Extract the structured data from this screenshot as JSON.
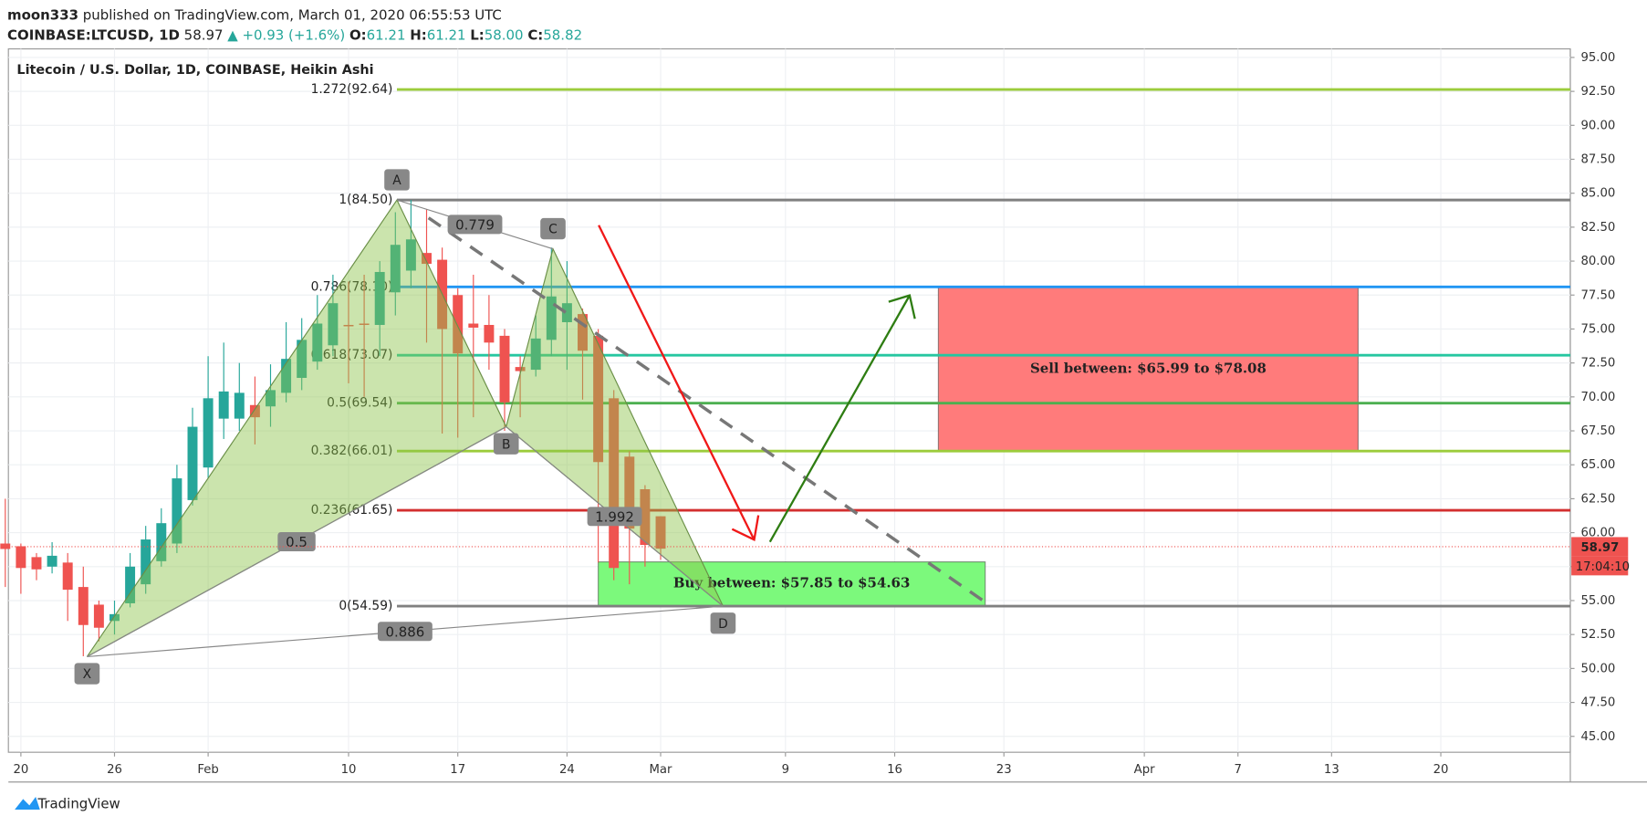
{
  "header": {
    "publisher": "moon333",
    "published": "published on TradingView.com, March 01, 2020 06:55:53 UTC",
    "symbol": "COINBASE:LTCUSD, 1D",
    "price": "58.97",
    "change": "▲ +0.93 (+1.6%)",
    "ohlc": [
      {
        "key": "O:",
        "value": "61.21"
      },
      {
        "key": "H:",
        "value": "61.21"
      },
      {
        "key": "L:",
        "value": "58.00"
      },
      {
        "key": "C:",
        "value": "58.82"
      }
    ],
    "brand": "TradingView"
  },
  "chart_data": {
    "type": "candlestick",
    "title": "Litecoin / U.S. Dollar, 1D, COINBASE, Heikin Ashi",
    "x": [
      -1,
      0,
      1,
      2,
      3,
      4,
      5,
      6,
      7,
      8,
      9,
      10,
      11,
      12,
      13,
      14,
      15,
      16,
      17,
      18,
      19,
      20,
      21,
      22,
      23,
      24,
      25,
      26,
      27,
      28,
      29,
      30,
      31,
      32,
      33,
      34,
      35,
      36,
      37,
      38,
      39,
      40,
      41
    ],
    "open": [
      59.2,
      59.0,
      58.2,
      57.5,
      57.8,
      56.0,
      54.7,
      53.5,
      54.8,
      56.2,
      57.9,
      59.2,
      62.4,
      64.8,
      68.4,
      68.4,
      69.4,
      69.3,
      70.3,
      71.4,
      72.6,
      73.8,
      75.3,
      75.4,
      75.3,
      77.7,
      79.3,
      80.6,
      80.1,
      77.5,
      75.4,
      75.3,
      74.5,
      72.2,
      72.0,
      74.2,
      75.5,
      76.1,
      74.5,
      69.9,
      65.6,
      63.2,
      61.21
    ],
    "high": [
      62.5,
      59.2,
      58.5,
      59.3,
      58.5,
      57.5,
      55.0,
      55.0,
      58.5,
      60.5,
      61.8,
      65.0,
      69.2,
      73.0,
      74.0,
      72.5,
      71.5,
      72.4,
      75.5,
      75.8,
      77.5,
      79.0,
      78.5,
      79.0,
      80.0,
      83.6,
      84.5,
      83.8,
      81.0,
      78.0,
      79.0,
      77.5,
      75.0,
      73.0,
      76.0,
      81.0,
      80.0,
      76.5,
      75.0,
      70.5,
      66.0,
      63.5,
      61.21
    ],
    "low": [
      56.0,
      55.5,
      56.5,
      57.0,
      53.5,
      50.9,
      52.0,
      52.5,
      54.5,
      55.5,
      57.5,
      58.5,
      62.0,
      64.0,
      66.9,
      67.5,
      66.5,
      67.8,
      69.6,
      70.5,
      72.0,
      73.0,
      71.0,
      70.0,
      73.0,
      76.0,
      78.0,
      74.0,
      67.3,
      67.0,
      68.5,
      72.0,
      67.5,
      68.5,
      71.5,
      73.0,
      72.0,
      69.8,
      57.8,
      56.5,
      56.2,
      57.5,
      58.0
    ],
    "close": [
      58.8,
      57.4,
      57.3,
      58.3,
      55.8,
      53.2,
      53.0,
      54.0,
      57.5,
      59.5,
      60.7,
      64.0,
      67.8,
      69.9,
      70.4,
      70.3,
      68.5,
      70.5,
      72.8,
      74.2,
      75.4,
      76.9,
      75.2,
      75.3,
      79.2,
      81.2,
      81.6,
      79.8,
      75.0,
      73.2,
      75.1,
      74.0,
      69.6,
      71.9,
      74.3,
      77.4,
      76.9,
      73.4,
      65.2,
      57.4,
      60.3,
      59.1,
      58.82
    ],
    "up_color": "#26a69a",
    "down_color": "#ef5350",
    "xlim": [
      -0.8,
      99.3
    ],
    "ylim": [
      43.83,
      95.63
    ],
    "xticks": [
      {
        "value": 0,
        "label": "20"
      },
      {
        "value": 6,
        "label": "26"
      },
      {
        "value": 12,
        "label": "Feb"
      },
      {
        "value": 21,
        "label": "10"
      },
      {
        "value": 28,
        "label": "17"
      },
      {
        "value": 35,
        "label": "24"
      },
      {
        "value": 41,
        "label": "Mar"
      },
      {
        "value": 49,
        "label": "9"
      },
      {
        "value": 56,
        "label": "16"
      },
      {
        "value": 63,
        "label": "23"
      },
      {
        "value": 72,
        "label": "Apr"
      },
      {
        "value": 78,
        "label": "7"
      },
      {
        "value": 84,
        "label": "13"
      },
      {
        "value": 91,
        "label": "20"
      }
    ],
    "yticks": [
      {
        "value": 45,
        "label": "45.00"
      },
      {
        "value": 47.5,
        "label": "47.50"
      },
      {
        "value": 50,
        "label": "50.00"
      },
      {
        "value": 52.5,
        "label": "52.50"
      },
      {
        "value": 55,
        "label": "55.00"
      },
      {
        "value": 57.5,
        "label": "57.50"
      },
      {
        "value": 60,
        "label": "60.00"
      },
      {
        "value": 62.5,
        "label": "62.50"
      },
      {
        "value": 65,
        "label": "65.00"
      },
      {
        "value": 67.5,
        "label": "67.50"
      },
      {
        "value": 70,
        "label": "70.00"
      },
      {
        "value": 72.5,
        "label": "72.50"
      },
      {
        "value": 75,
        "label": "75.00"
      },
      {
        "value": 77.5,
        "label": "77.50"
      },
      {
        "value": 80,
        "label": "80.00"
      },
      {
        "value": 82.5,
        "label": "82.50"
      },
      {
        "value": 85,
        "label": "85.00"
      },
      {
        "value": 87.5,
        "label": "87.50"
      },
      {
        "value": 90,
        "label": "90.00"
      },
      {
        "value": 92.5,
        "label": "92.50"
      },
      {
        "value": 95,
        "label": "95.00"
      }
    ],
    "grid": true,
    "levels": [
      {
        "label": "1.272(92.64)",
        "value": 92.64,
        "color": "#9ccc3c"
      },
      {
        "label": "1(84.50)",
        "value": 84.5,
        "color": "#808080"
      },
      {
        "label": "0.786(78.10)",
        "value": 78.1,
        "color": "#2196f3"
      },
      {
        "label": "0.618(73.07)",
        "value": 73.07,
        "color": "#26c6a0"
      },
      {
        "label": "0.5(69.54)",
        "value": 69.54,
        "color": "#4caf50"
      },
      {
        "label": "0.382(66.01)",
        "value": 66.01,
        "color": "#9ccc3c"
      },
      {
        "label": "0.236(61.65)",
        "value": 61.65,
        "color": "#d32f2f"
      },
      {
        "label": "0(54.59)",
        "value": 54.59,
        "color": "#808080"
      }
    ],
    "pattern": {
      "color": "#8bc34a",
      "points": [
        {
          "label": "X",
          "x": 4.24,
          "y": 50.87
        },
        {
          "label": "A",
          "x": 24.1,
          "y": 84.5
        },
        {
          "label": "B",
          "x": 31.1,
          "y": 67.8
        },
        {
          "label": "C",
          "x": 34.1,
          "y": 80.9
        },
        {
          "label": "D",
          "x": 45.0,
          "y": 54.59
        }
      ],
      "ratios": [
        {
          "label": "0.779",
          "from": "A",
          "to": "C"
        },
        {
          "label": "0.5",
          "from": "X",
          "to": "B"
        },
        {
          "label": "1.992",
          "from": "B",
          "to": "D"
        },
        {
          "label": "0.886",
          "from": "X",
          "to": "D"
        }
      ]
    },
    "zones": [
      {
        "label": "Sell between: $65.99 to $78.08",
        "x": [
          58.8,
          85.7
        ],
        "y": [
          65.99,
          78.08
        ],
        "color": "#ff7b7b"
      },
      {
        "label": "Buy between: $57.85 to $54.63",
        "x": [
          37.0,
          61.8
        ],
        "y": [
          54.63,
          57.85
        ],
        "color": "#7cf97c"
      }
    ],
    "last_price": {
      "value": 58.97,
      "label": "58.97",
      "countdown": "17:04:10",
      "color": "#ef5350"
    }
  }
}
